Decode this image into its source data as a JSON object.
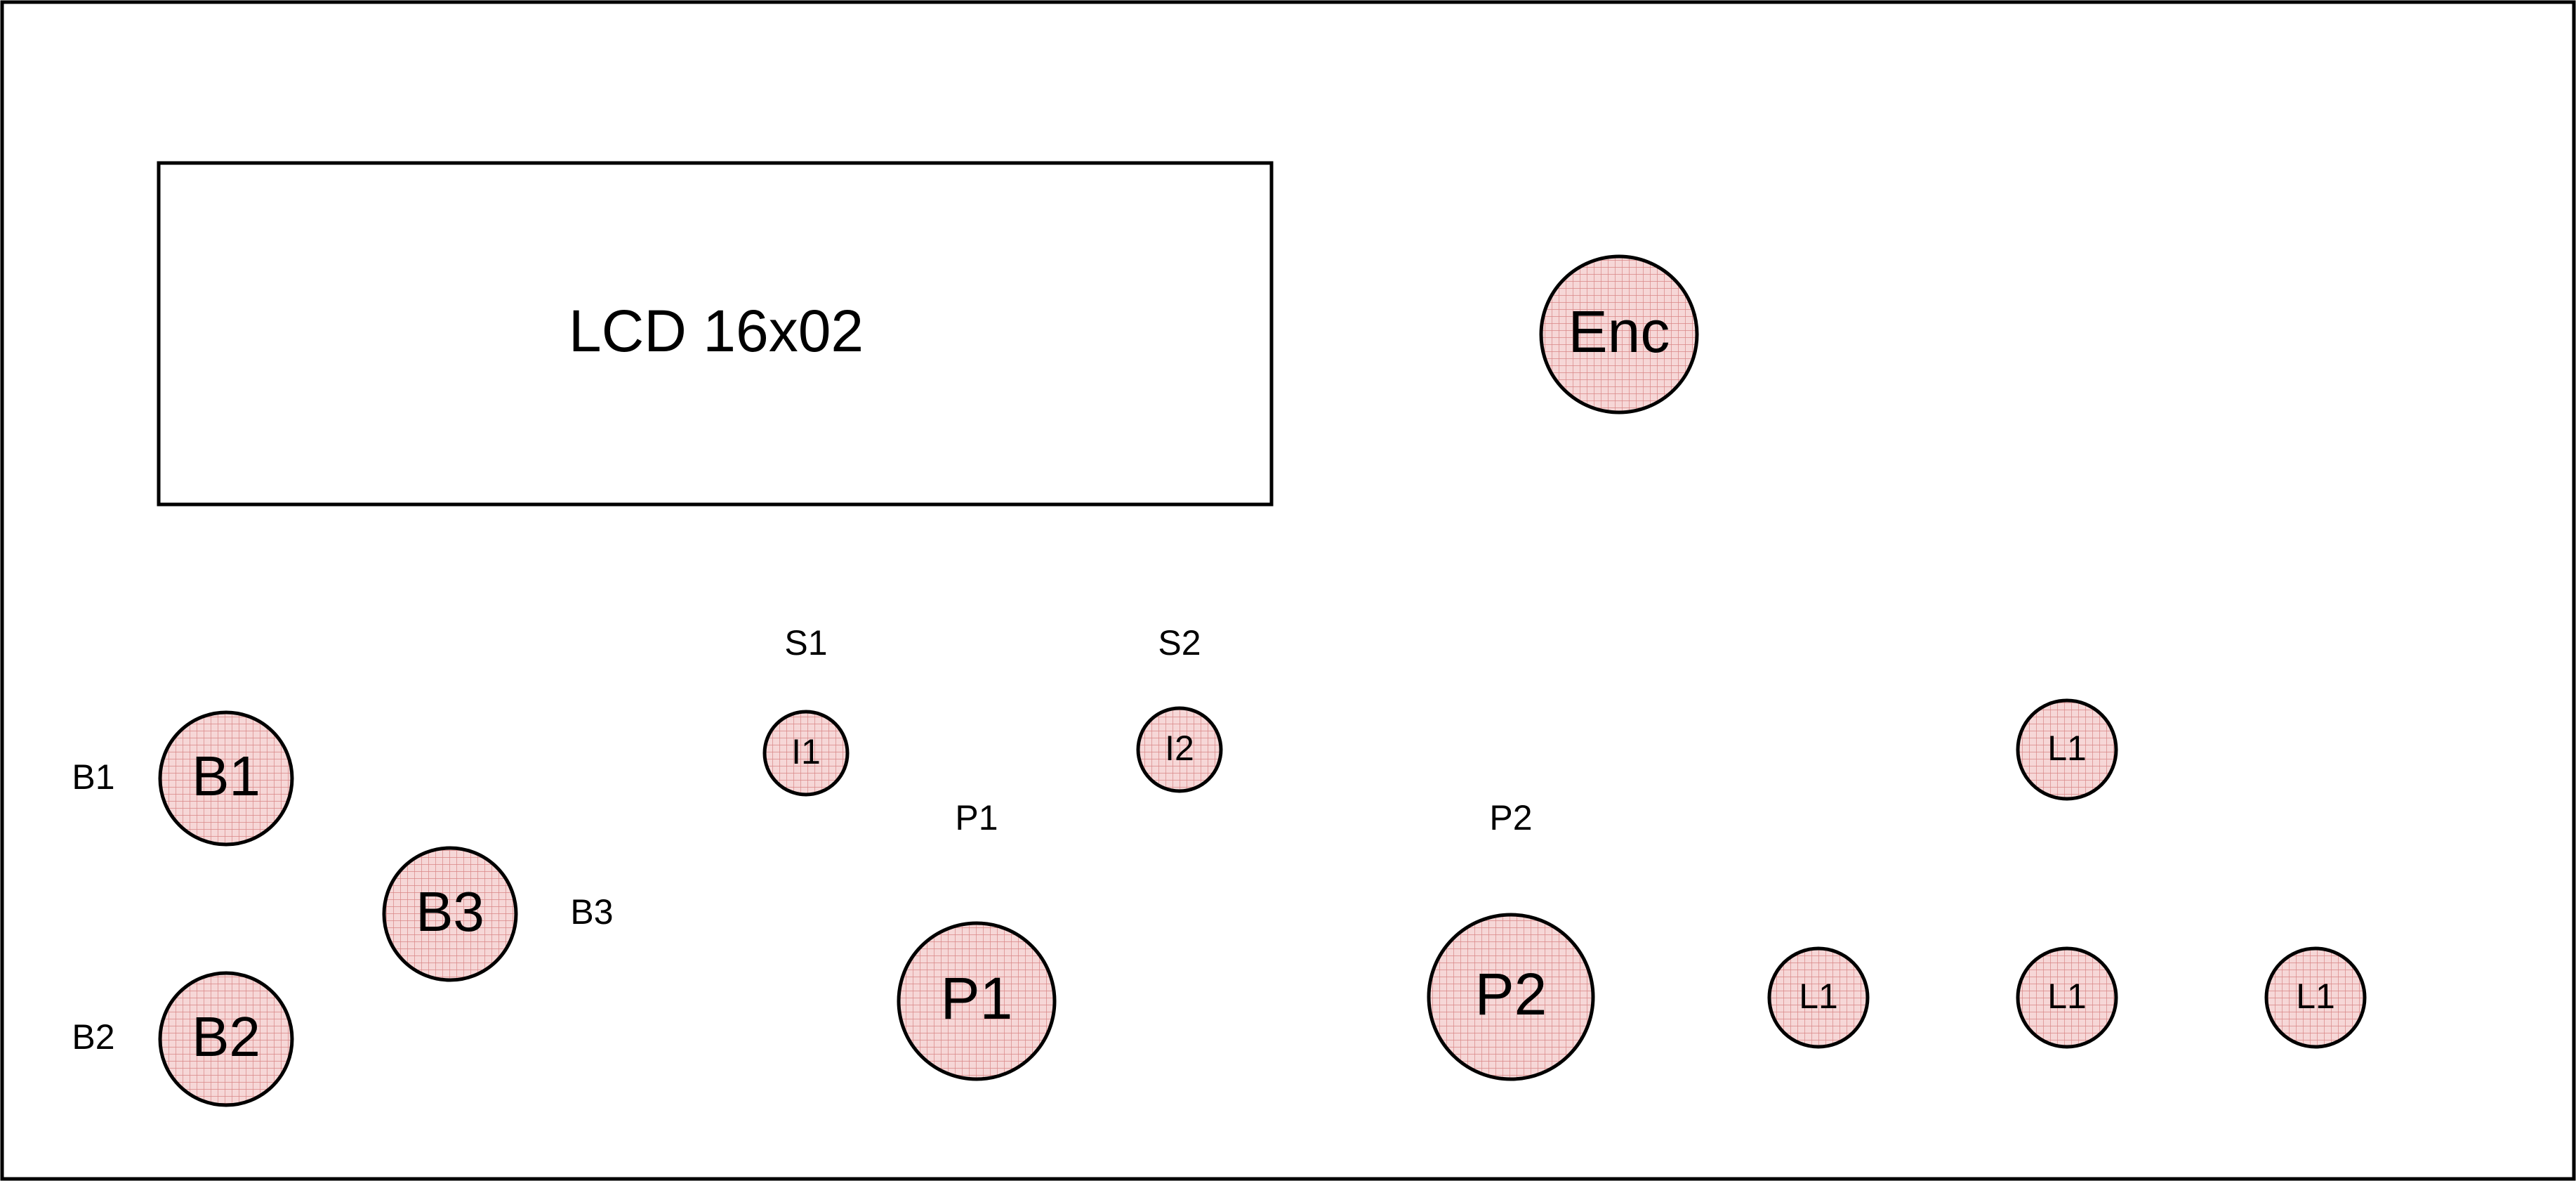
{
  "lcd": {
    "label": "LCD 16x02"
  },
  "components": [
    {
      "id": "enc",
      "label": "Enc"
    },
    {
      "id": "b1",
      "label": "B1"
    },
    {
      "id": "b2",
      "label": "B2"
    },
    {
      "id": "b3",
      "label": "B3"
    },
    {
      "id": "i1",
      "label": "I1"
    },
    {
      "id": "i2",
      "label": "I2"
    },
    {
      "id": "p1",
      "label": "P1"
    },
    {
      "id": "p2",
      "label": "P2"
    },
    {
      "id": "l1-top",
      "label": "L1"
    },
    {
      "id": "l1-bottom-left",
      "label": "L1"
    },
    {
      "id": "l1-bottom-middle",
      "label": "L1"
    },
    {
      "id": "l1-bottom-right",
      "label": "L1"
    }
  ],
  "external_labels": [
    {
      "id": "b1",
      "text": "B1"
    },
    {
      "id": "b2",
      "text": "B2"
    },
    {
      "id": "b3",
      "text": "B3"
    },
    {
      "id": "s1",
      "text": "S1"
    },
    {
      "id": "s2",
      "text": "S2"
    },
    {
      "id": "p1",
      "text": "P1"
    },
    {
      "id": "p2",
      "text": "P2"
    }
  ],
  "colors": {
    "component_fill": "#f6d7d7",
    "component_grid": "#d88686",
    "outline": "#000000"
  }
}
